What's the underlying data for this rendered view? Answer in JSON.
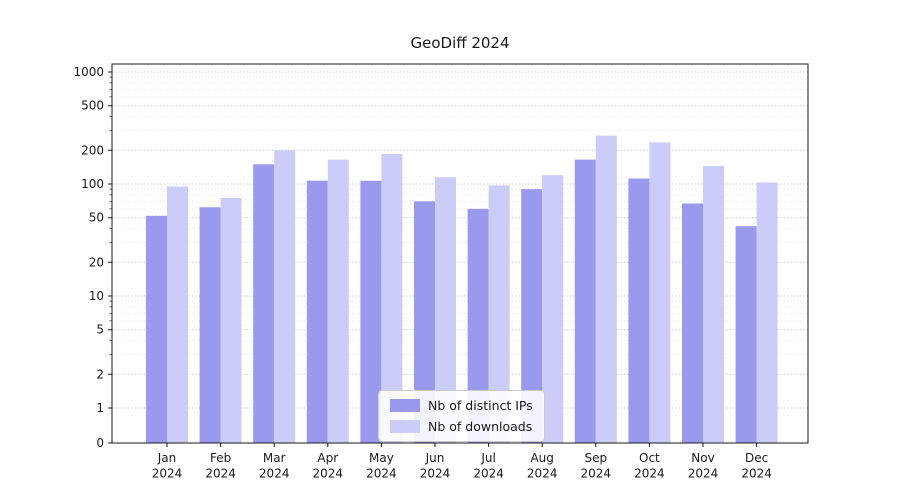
{
  "chart_data": {
    "type": "bar",
    "title": "GeoDiff 2024",
    "categories": [
      "Jan 2024",
      "Feb 2024",
      "Mar 2024",
      "Apr 2024",
      "May 2024",
      "Jun 2024",
      "Jul 2024",
      "Aug 2024",
      "Sep 2024",
      "Oct 2024",
      "Nov 2024",
      "Dec 2024"
    ],
    "series": [
      {
        "name": "Nb of distinct IPs",
        "color": "#9999ee",
        "values": [
          52,
          62,
          150,
          107,
          107,
          70,
          60,
          90,
          165,
          112,
          67,
          42
        ]
      },
      {
        "name": "Nb of downloads",
        "color": "#ccccf8",
        "values": [
          95,
          75,
          200,
          165,
          185,
          115,
          97,
          120,
          270,
          235,
          145,
          103
        ]
      }
    ],
    "yscale": "symlog",
    "yticks": [
      0,
      1,
      2,
      5,
      10,
      20,
      50,
      100,
      200,
      500,
      1000
    ],
    "ylim": [
      0,
      1180
    ],
    "xlabel": "",
    "ylabel": "",
    "grid": "both",
    "legend_position": "lower center"
  }
}
